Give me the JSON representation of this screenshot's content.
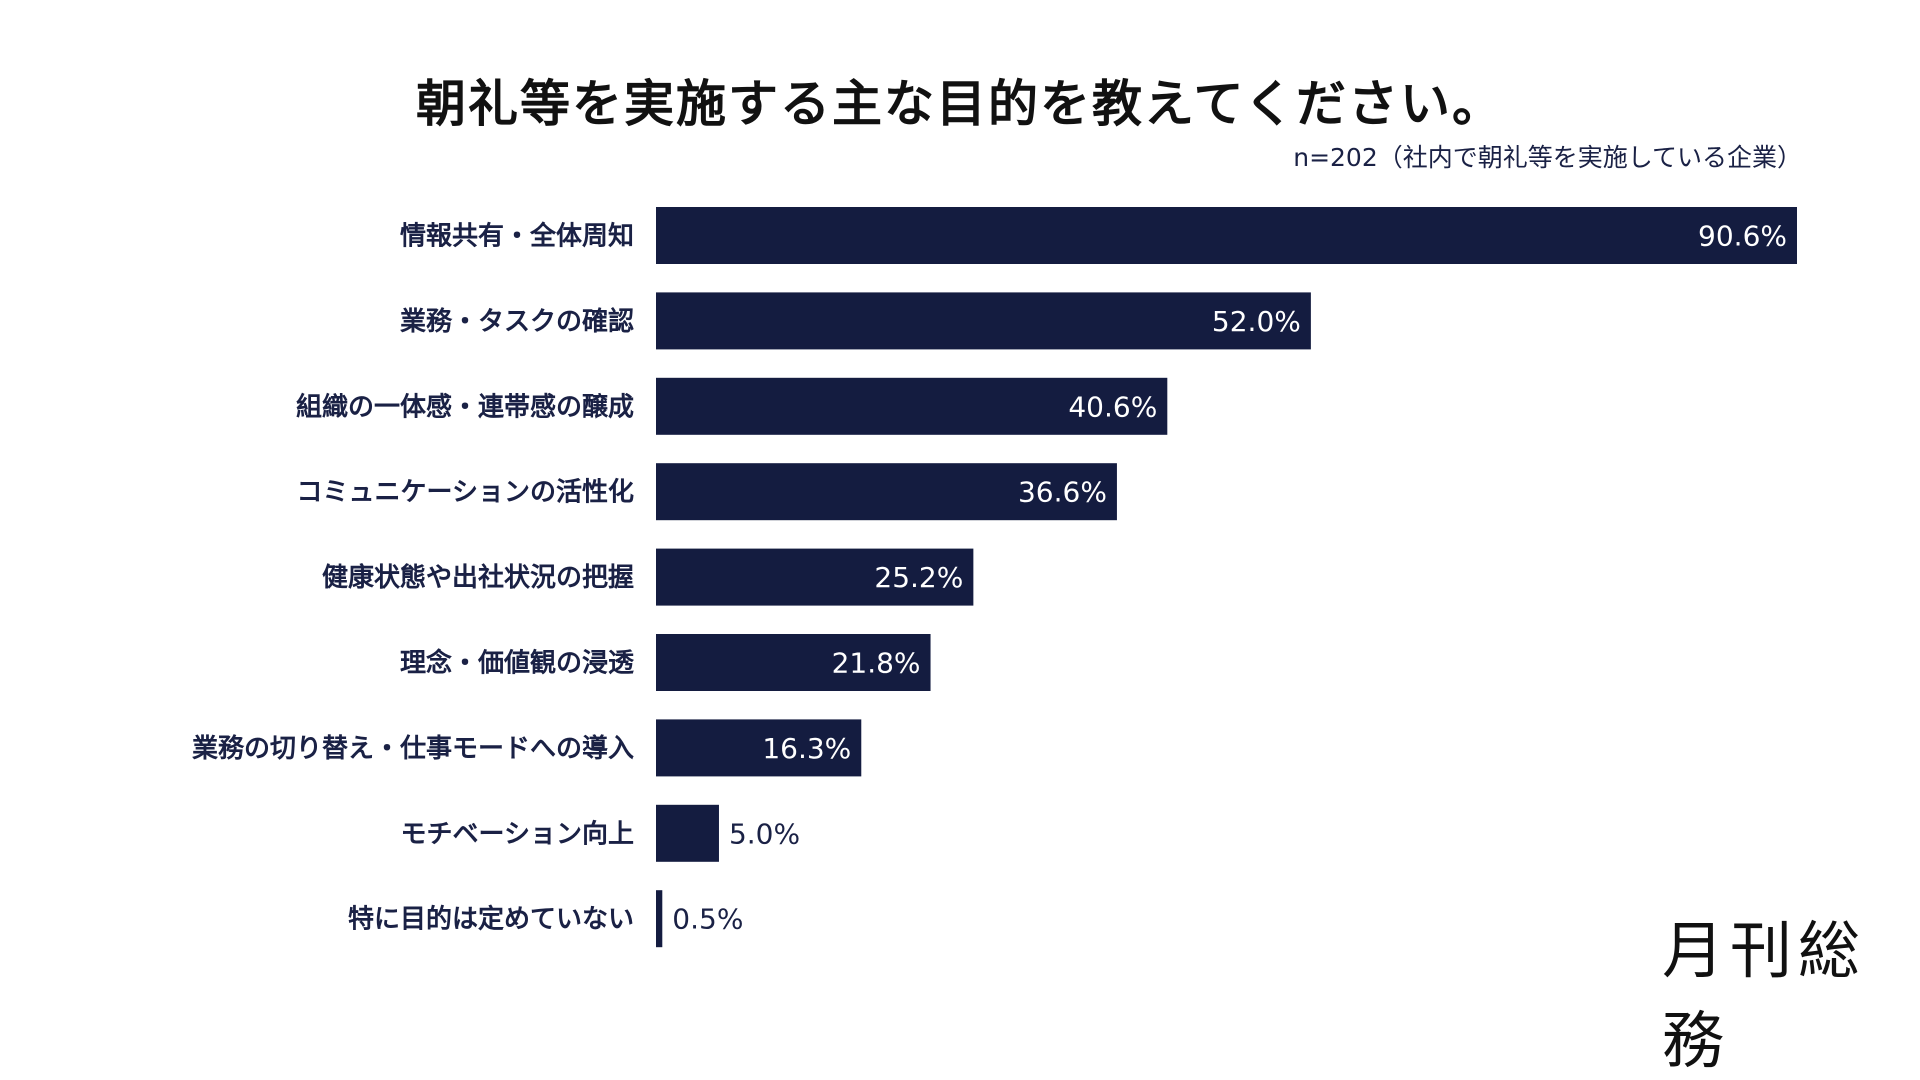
{
  "chart_data": {
    "type": "bar",
    "orientation": "horizontal",
    "title": "朝礼等を実施する主な目的を教えてください。",
    "subtitle": "n=202（社内で朝礼等を実施している企業）",
    "categories": [
      "情報共有・全体周知",
      "業務・タスクの確認",
      "組織の一体感・連帯感の醸成",
      "コミュニケーションの活性化",
      "健康状態や出社状況の把握",
      "理念・価値観の浸透",
      "業務の切り替え・仕事モードへの導入",
      "モチベーション向上",
      "特に目的は定めていない"
    ],
    "values": [
      90.6,
      52.0,
      40.6,
      36.6,
      25.2,
      21.8,
      16.3,
      5.0,
      0.5
    ],
    "data_labels": [
      "90.6%",
      "52.0%",
      "40.6%",
      "36.6%",
      "25.2%",
      "21.8%",
      "16.3%",
      "5.0%",
      "0.5%"
    ],
    "xlim": [
      0,
      90.6
    ],
    "grid": false,
    "bar_color": "#141c40",
    "label_color": "#1a2145"
  },
  "logo": "月刊総務"
}
